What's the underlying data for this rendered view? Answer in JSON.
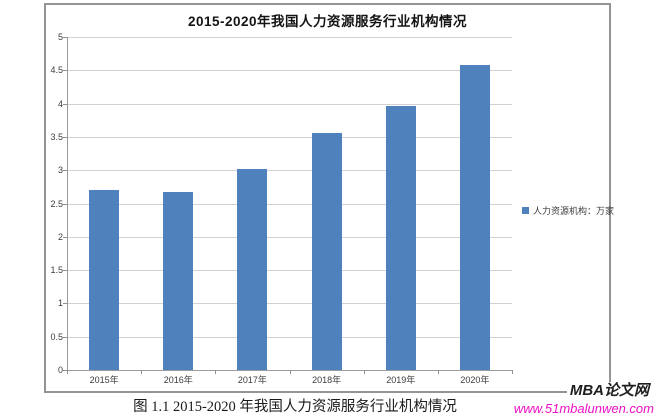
{
  "chart": {
    "legend": {
      "label": "人力资源机构：万家",
      "marker_color": "#4f81bd"
    }
  },
  "caption": "图 1.1 2015-2020 年我国人力资源服务行业机构情况",
  "watermark": {
    "site_name": "MBA论文网",
    "site_url": "www.51mbalunwen.com",
    "url_color": "#ee10c5"
  },
  "chart_data": {
    "type": "bar",
    "title": "2015-2020年我国人力资源服务行业机构情况",
    "categories": [
      "2015年",
      "2016年",
      "2017年",
      "2018年",
      "2019年",
      "2020年"
    ],
    "values": [
      2.7,
      2.67,
      3.02,
      3.56,
      3.96,
      4.58
    ],
    "series": [
      {
        "name": "人力资源机构：万家",
        "values": [
          2.7,
          2.67,
          3.02,
          3.56,
          3.96,
          4.58
        ]
      }
    ],
    "xlabel": "",
    "ylabel": "",
    "ylim": [
      0,
      5
    ],
    "yticks": [
      0,
      0.5,
      1,
      1.5,
      2,
      2.5,
      3,
      3.5,
      4,
      4.5,
      5
    ],
    "grid": true,
    "legend_position": "right",
    "bar_color": "#4f81bd",
    "gridline_color": "#d2d2d2",
    "axis_color": "#9b9b9b",
    "tick_label_color": "#3c3c3c"
  }
}
